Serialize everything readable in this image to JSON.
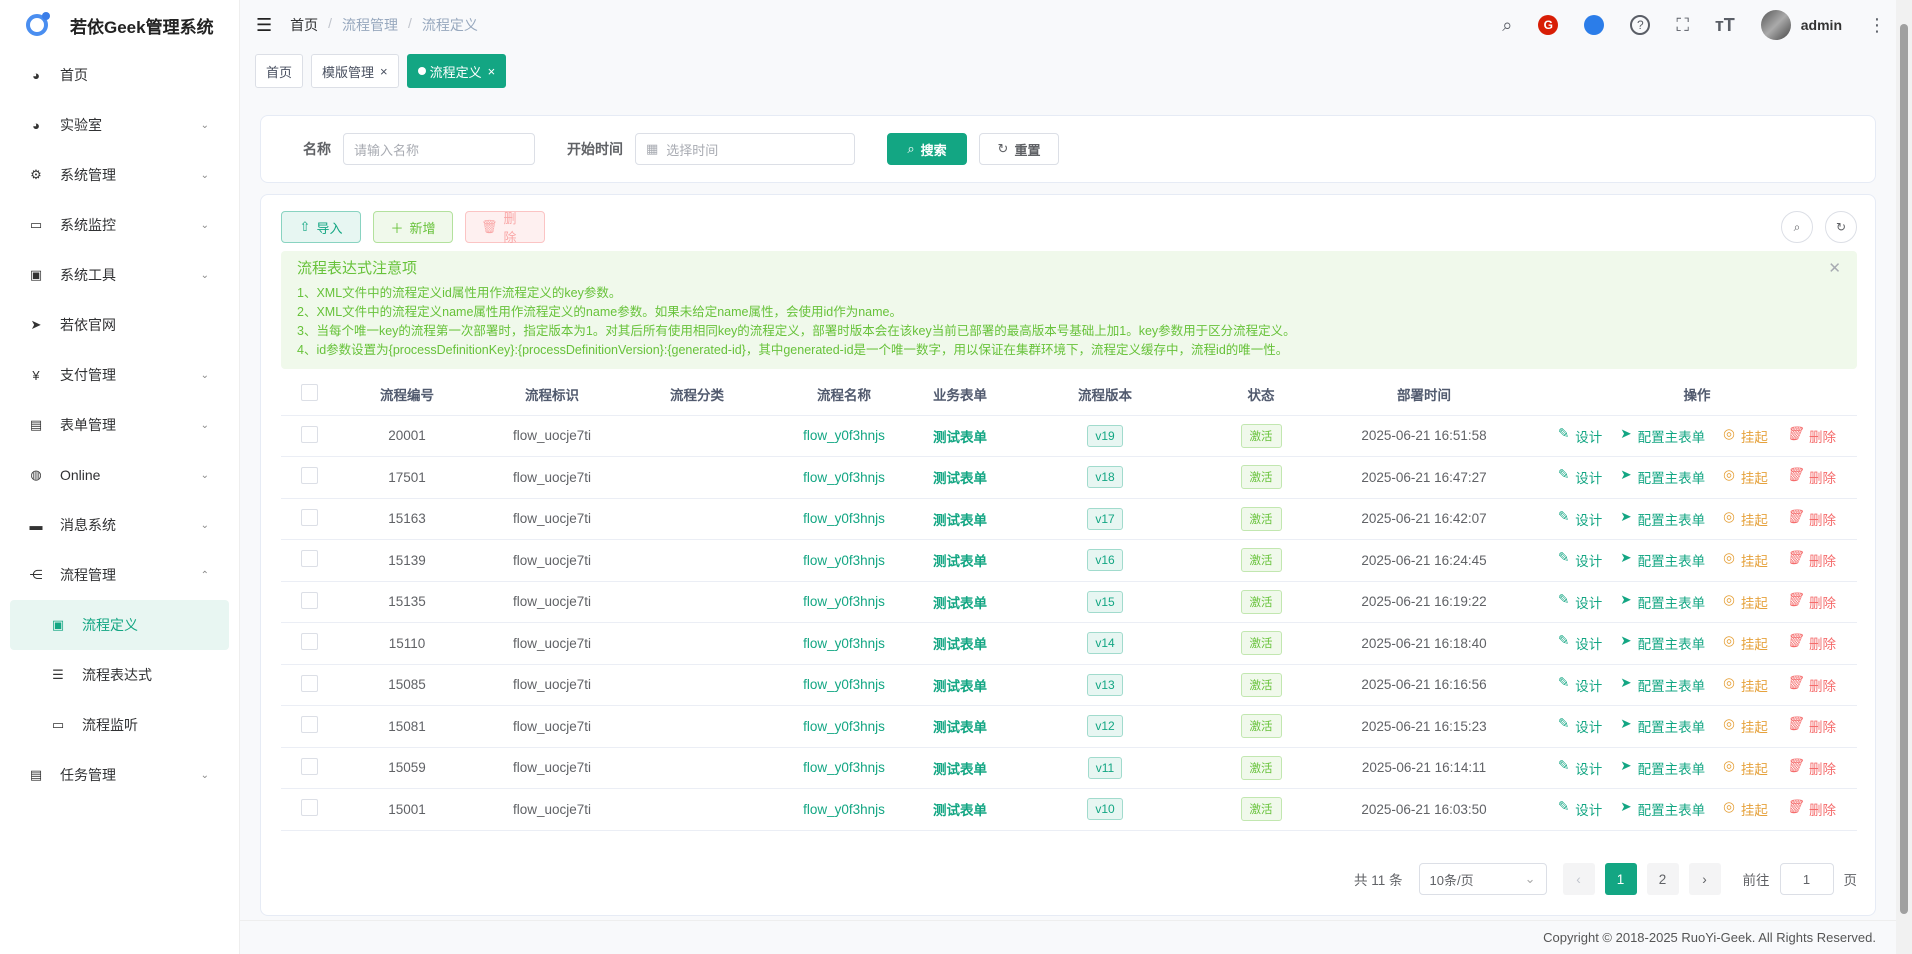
{
  "app": {
    "title": "若依Geek管理系统"
  },
  "sidebar": {
    "items": [
      {
        "label": "首页",
        "icon": "dashboard-icon",
        "glyph": "◕",
        "chev": ""
      },
      {
        "label": "实验室",
        "icon": "lab-icon",
        "glyph": "◕",
        "chev": "⌄"
      },
      {
        "label": "系统管理",
        "icon": "gear-icon",
        "glyph": "⚙",
        "chev": "⌄"
      },
      {
        "label": "系统监控",
        "icon": "monitor-icon",
        "glyph": "▭",
        "chev": "⌄"
      },
      {
        "label": "系统工具",
        "icon": "toolbox-icon",
        "glyph": "▣",
        "chev": "⌄"
      },
      {
        "label": "若依官网",
        "icon": "send-icon",
        "glyph": "➤",
        "chev": ""
      },
      {
        "label": "支付管理",
        "icon": "yen-icon",
        "glyph": "¥",
        "chev": "⌄"
      },
      {
        "label": "表单管理",
        "icon": "form-icon",
        "glyph": "▤",
        "chev": "⌄"
      },
      {
        "label": "Online",
        "icon": "globe-icon",
        "glyph": "◍",
        "chev": "⌄"
      },
      {
        "label": "消息系统",
        "icon": "message-icon",
        "glyph": "▬",
        "chev": "⌄"
      },
      {
        "label": "流程管理",
        "icon": "flow-icon",
        "glyph": "⋲",
        "chev": "⌃"
      },
      {
        "label": "流程定义",
        "icon": "definition-icon",
        "glyph": "▣",
        "chev": "",
        "sub": true,
        "active": true
      },
      {
        "label": "流程表达式",
        "icon": "list-icon",
        "glyph": "☰",
        "chev": "",
        "sub": true
      },
      {
        "label": "流程监听",
        "icon": "monitor-icon",
        "glyph": "▭",
        "chev": "",
        "sub": true
      },
      {
        "label": "任务管理",
        "icon": "task-icon",
        "glyph": "▤",
        "chev": "⌄"
      }
    ]
  },
  "header": {
    "breadcrumb": [
      "首页",
      "流程管理",
      "流程定义"
    ],
    "user": "admin"
  },
  "tags": [
    {
      "label": "首页"
    },
    {
      "label": "模版管理"
    },
    {
      "label": "流程定义",
      "active": true
    }
  ],
  "search": {
    "name_label": "名称",
    "name_placeholder": "请输入名称",
    "time_label": "开始时间",
    "time_placeholder": "选择时间",
    "search_btn": "搜索",
    "reset_btn": "重置"
  },
  "toolbar": {
    "import": "导入",
    "add": "新增",
    "delete": "删除"
  },
  "alert": {
    "title": "流程表达式注意项",
    "lines": [
      "1、XML文件中的流程定义id属性用作流程定义的key参数。",
      "2、XML文件中的流程定义name属性用作流程定义的name参数。如果未给定name属性，会使用id作为name。",
      "3、当每个唯一key的流程第一次部署时，指定版本为1。对其后所有使用相同key的流程定义，部署时版本会在该key当前已部署的最高版本号基础上加1。key参数用于区分流程定义。",
      "4、id参数设置为{processDefinitionKey}:{processDefinitionVersion}:{generated-id}，其中generated-id是一个唯一数字，用以保证在集群环境下，流程定义缓存中，流程id的唯一性。"
    ]
  },
  "table": {
    "columns": [
      "流程编号",
      "流程标识",
      "流程分类",
      "流程名称",
      "业务表单",
      "流程版本",
      "状态",
      "部署时间",
      "操作"
    ],
    "actions": {
      "design": "设计",
      "config": "配置主表单",
      "suspend": "挂起",
      "delete": "删除"
    },
    "rows": [
      {
        "id": "20001",
        "key": "flow_uocje7ti",
        "category": "",
        "name": "flow_y0f3hnjs",
        "form": "测试表单",
        "version": "v19",
        "status": "激活",
        "time": "2025-06-21 16:51:58"
      },
      {
        "id": "17501",
        "key": "flow_uocje7ti",
        "category": "",
        "name": "flow_y0f3hnjs",
        "form": "测试表单",
        "version": "v18",
        "status": "激活",
        "time": "2025-06-21 16:47:27"
      },
      {
        "id": "15163",
        "key": "flow_uocje7ti",
        "category": "",
        "name": "flow_y0f3hnjs",
        "form": "测试表单",
        "version": "v17",
        "status": "激活",
        "time": "2025-06-21 16:42:07"
      },
      {
        "id": "15139",
        "key": "flow_uocje7ti",
        "category": "",
        "name": "flow_y0f3hnjs",
        "form": "测试表单",
        "version": "v16",
        "status": "激活",
        "time": "2025-06-21 16:24:45"
      },
      {
        "id": "15135",
        "key": "flow_uocje7ti",
        "category": "",
        "name": "flow_y0f3hnjs",
        "form": "测试表单",
        "version": "v15",
        "status": "激活",
        "time": "2025-06-21 16:19:22"
      },
      {
        "id": "15110",
        "key": "flow_uocje7ti",
        "category": "",
        "name": "flow_y0f3hnjs",
        "form": "测试表单",
        "version": "v14",
        "status": "激活",
        "time": "2025-06-21 16:18:40"
      },
      {
        "id": "15085",
        "key": "flow_uocje7ti",
        "category": "",
        "name": "flow_y0f3hnjs",
        "form": "测试表单",
        "version": "v13",
        "status": "激活",
        "time": "2025-06-21 16:16:56"
      },
      {
        "id": "15081",
        "key": "flow_uocje7ti",
        "category": "",
        "name": "flow_y0f3hnjs",
        "form": "测试表单",
        "version": "v12",
        "status": "激活",
        "time": "2025-06-21 16:15:23"
      },
      {
        "id": "15059",
        "key": "flow_uocje7ti",
        "category": "",
        "name": "flow_y0f3hnjs",
        "form": "测试表单",
        "version": "v11",
        "status": "激活",
        "time": "2025-06-21 16:14:11"
      },
      {
        "id": "15001",
        "key": "flow_uocje7ti",
        "category": "",
        "name": "flow_y0f3hnjs",
        "form": "测试表单",
        "version": "v10",
        "status": "激活",
        "time": "2025-06-21 16:03:50"
      }
    ]
  },
  "pagination": {
    "total": "共 11 条",
    "page_size": "10条/页",
    "pages": [
      "1",
      "2"
    ],
    "current": "1",
    "goto_label": "前往",
    "goto_value": "1",
    "page_unit": "页"
  },
  "footer": {
    "copyright": "Copyright © 2018-2025 RuoYi-Geek. All Rights Reserved."
  },
  "colors": {
    "primary": "#13a683",
    "success": "#67c23a",
    "warning": "#e6a23c",
    "danger": "#f56c6c"
  }
}
